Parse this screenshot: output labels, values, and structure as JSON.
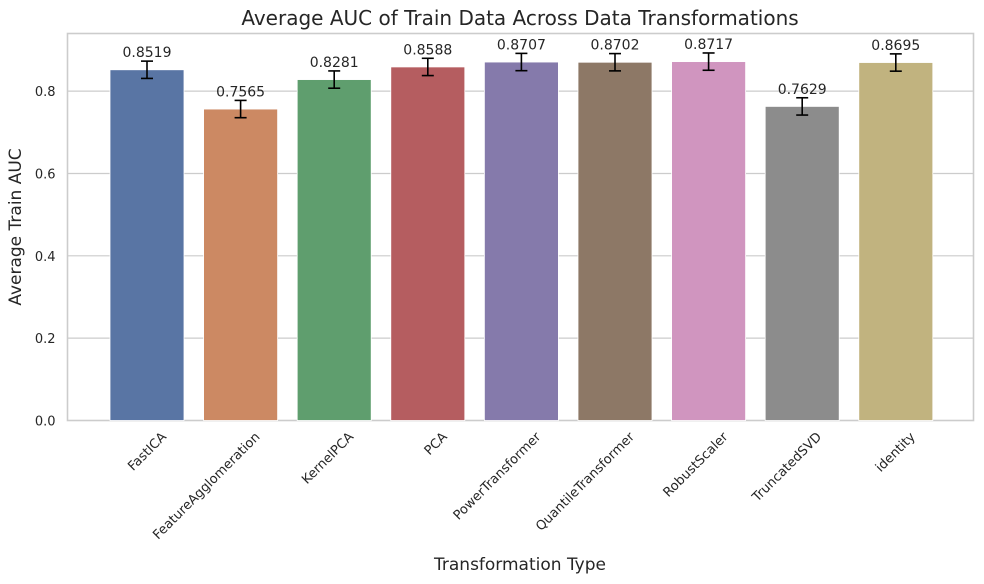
{
  "chart_data": {
    "type": "bar",
    "title": "Average AUC of Train Data Across Data Transformations",
    "xlabel": "Transformation Type",
    "ylabel": "Average Train AUC",
    "categories": [
      "FastICA",
      "FeatureAgglomeration",
      "KernelPCA",
      "PCA",
      "PowerTransformer",
      "QuantileTransformer",
      "RobustScaler",
      "TruncatedSVD",
      "identity"
    ],
    "values": [
      0.8519,
      0.7565,
      0.8281,
      0.8588,
      0.8707,
      0.8702,
      0.8717,
      0.7629,
      0.8695
    ],
    "value_labels": [
      "0.8519",
      "0.7565",
      "0.8281",
      "0.8588",
      "0.8707",
      "0.8702",
      "0.8717",
      "0.7629",
      "0.8695"
    ],
    "error": [
      0.021,
      0.021,
      0.021,
      0.021,
      0.021,
      0.021,
      0.021,
      0.021,
      0.021
    ],
    "colors": [
      "#5975a4",
      "#cc8963",
      "#5f9e6e",
      "#b55d60",
      "#857aab",
      "#8d7866",
      "#d095bf",
      "#8c8c8c",
      "#c1b37f"
    ],
    "ylim": [
      0,
      0.94
    ],
    "yticks": [
      0.0,
      0.2,
      0.4,
      0.6,
      0.8
    ],
    "ytick_labels": [
      "0.0",
      "0.2",
      "0.4",
      "0.6",
      "0.8"
    ],
    "grid": "horizontal",
    "legend": "none"
  }
}
